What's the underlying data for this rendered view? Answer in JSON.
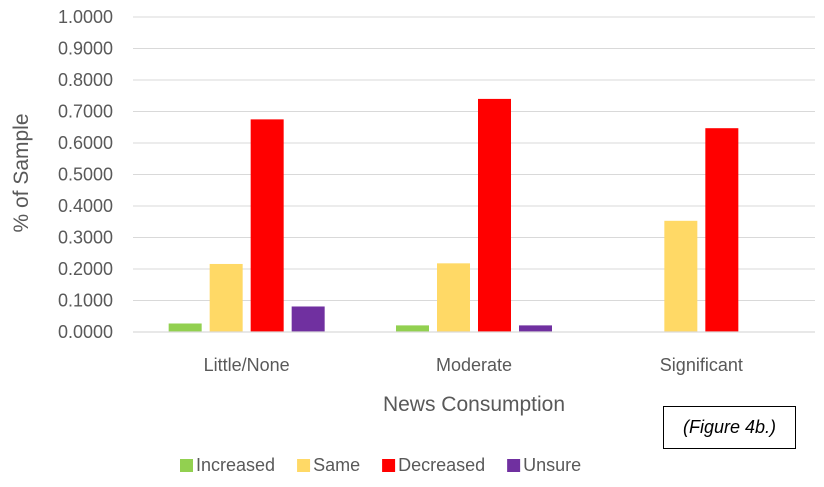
{
  "chart_data": {
    "type": "bar",
    "categories": [
      "Little/None",
      "Moderate",
      "Significant"
    ],
    "series": [
      {
        "name": "Increased",
        "color": "#92D050",
        "values": [
          0.027,
          0.021,
          0.0
        ]
      },
      {
        "name": "Same",
        "color": "#FFD966",
        "values": [
          0.216,
          0.218,
          0.353
        ]
      },
      {
        "name": "Decreased",
        "color": "#FF0000",
        "values": [
          0.675,
          0.74,
          0.647
        ]
      },
      {
        "name": "Unsure",
        "color": "#7030A0",
        "values": [
          0.081,
          0.021,
          0.0
        ]
      }
    ],
    "ylim": [
      0,
      1
    ],
    "yticks": [
      "0.0000",
      "0.1000",
      "0.2000",
      "0.3000",
      "0.4000",
      "0.5000",
      "0.6000",
      "0.7000",
      "0.8000",
      "0.9000",
      "1.0000"
    ],
    "xlabel": "News Consumption",
    "ylabel": "% of Sample",
    "grid": true,
    "legend_position": "bottom"
  },
  "note": "(Figure 4b.)"
}
